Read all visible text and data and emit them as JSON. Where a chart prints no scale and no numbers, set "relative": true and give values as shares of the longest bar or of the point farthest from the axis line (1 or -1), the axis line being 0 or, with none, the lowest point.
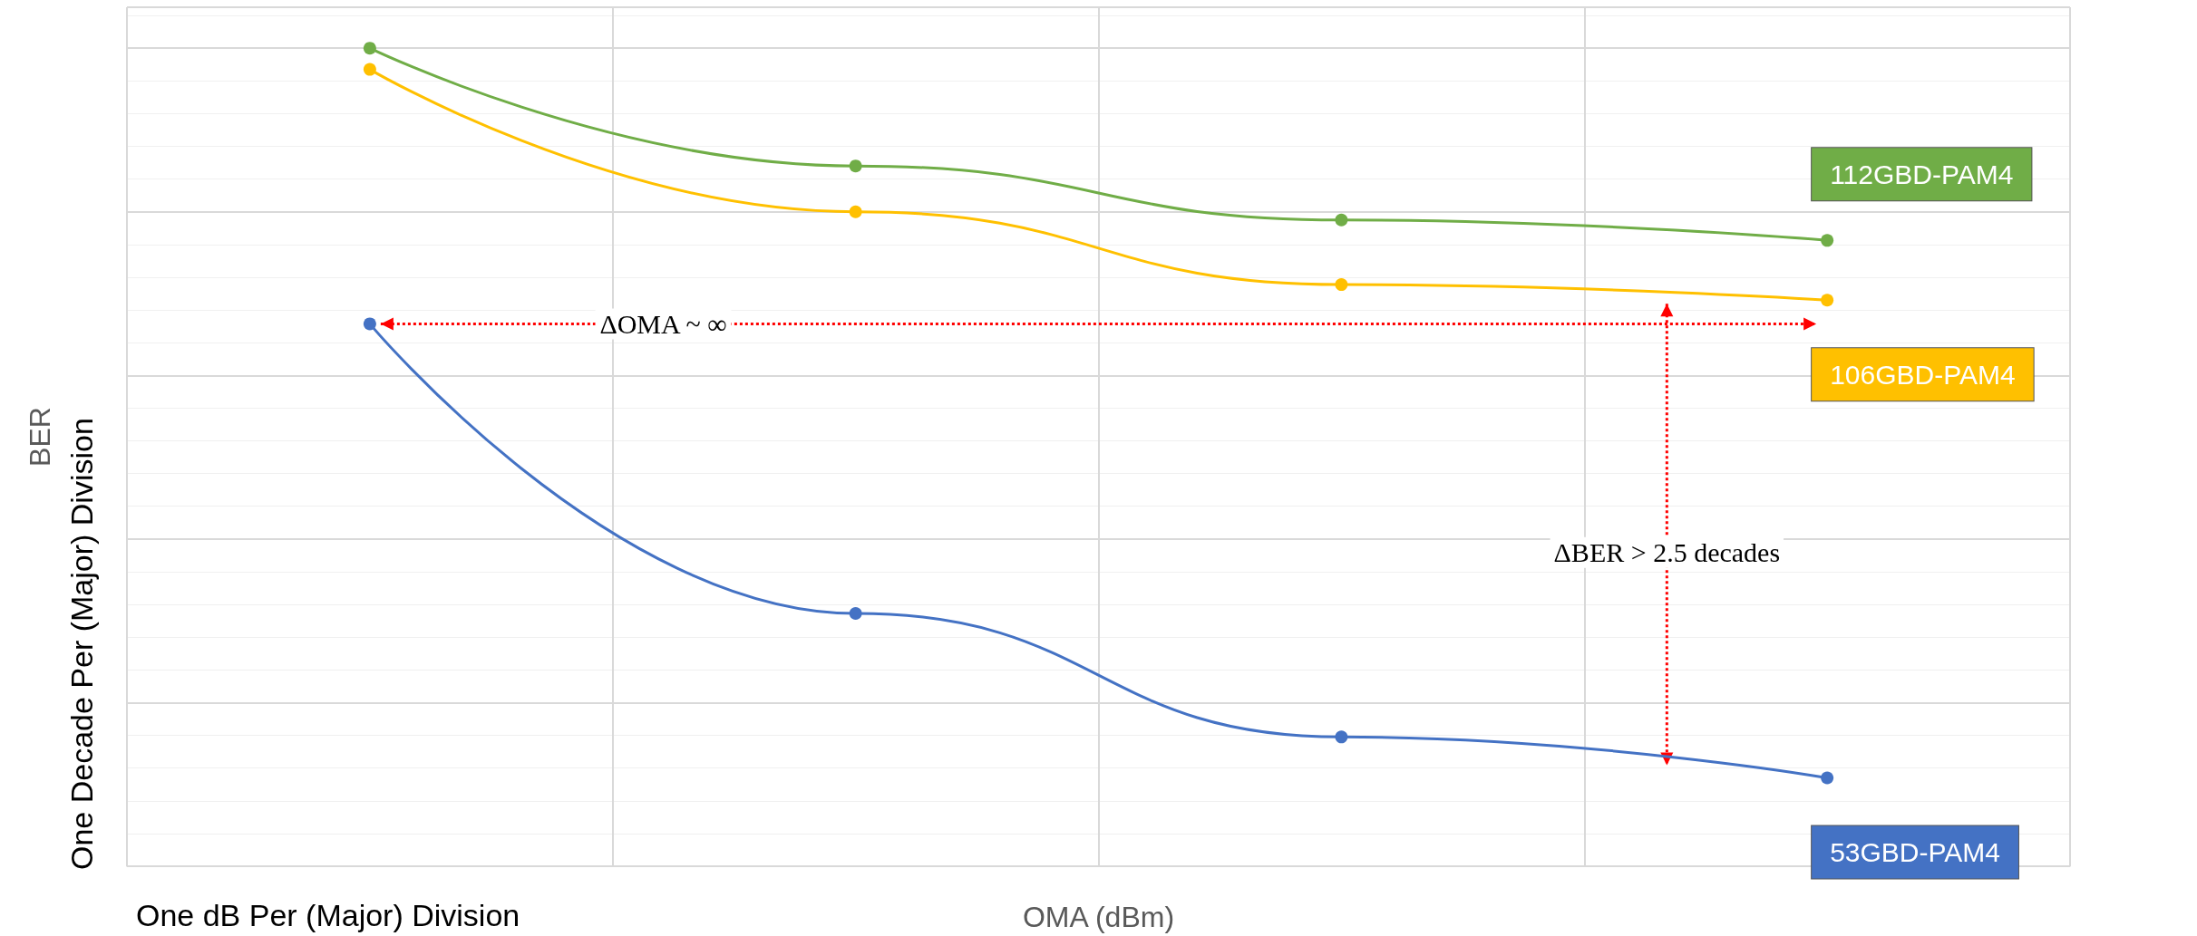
{
  "chart_data": {
    "type": "line",
    "relative": true,
    "xlabel": "OMA (dBm)",
    "ylabel": "BER",
    "categories": [
      null,
      null,
      null,
      null
    ],
    "series": [
      {
        "name": "112GBD-PAM4",
        "color": "#70ad47",
        "values": [
          1,
          0.856,
          0.79,
          0.765
        ]
      },
      {
        "name": "106GBD-PAM4",
        "color": "#ffc000",
        "values": [
          0.974,
          0.8,
          0.711,
          0.692
        ]
      },
      {
        "name": "53GBD-PAM4",
        "color": "#4472c4",
        "values": [
          0.663,
          0.309,
          0.158,
          0.108
        ]
      }
    ],
    "annotations": [
      "ΔOMA ~ ∞",
      "ΔBER > 2.5 decades",
      "One dB Per (Major) Division",
      "One Decade Per (Major) Division"
    ],
    "marker": "circle",
    "line_style": "solid",
    "grid": true,
    "legend": false
  }
}
